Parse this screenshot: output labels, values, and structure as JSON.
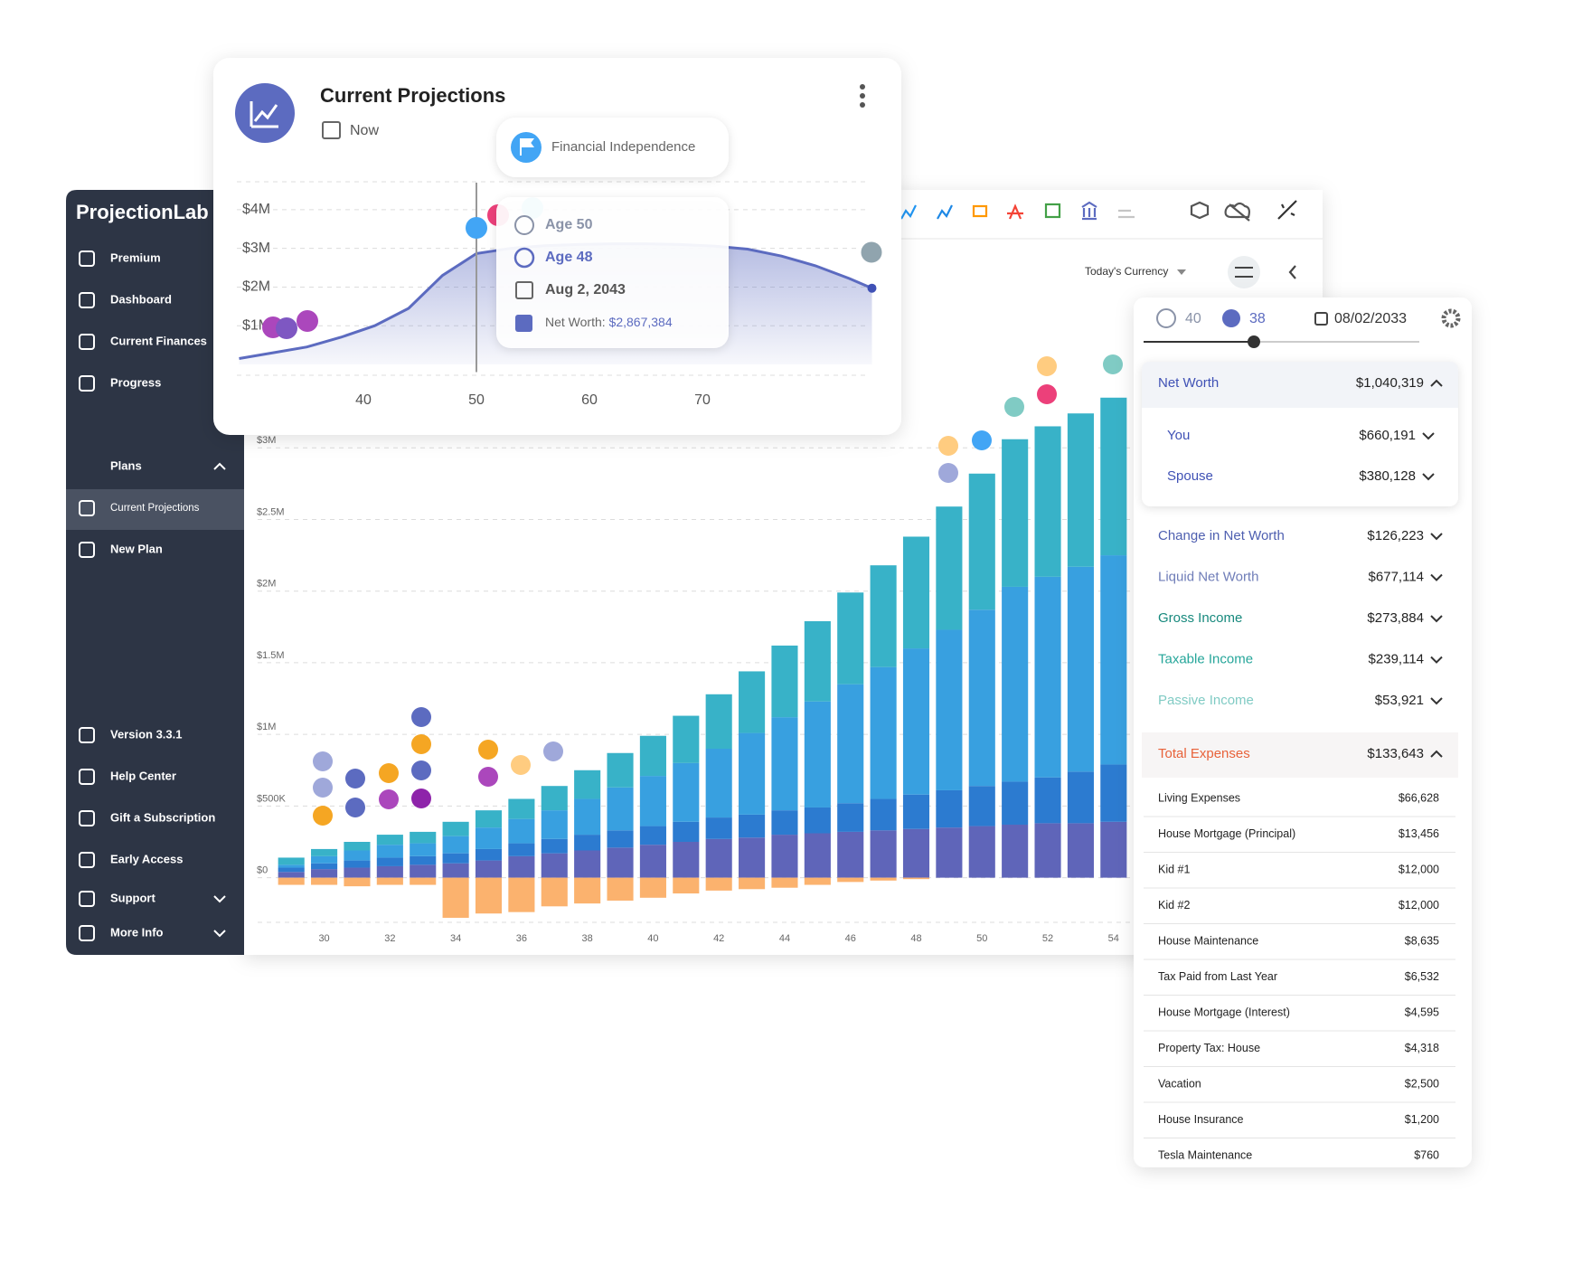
{
  "sidebar": {
    "brand": "ProjectionLab",
    "nav": [
      "Premium",
      "Dashboard",
      "Current Finances",
      "Progress"
    ],
    "plans_header": "Plans",
    "plans": [
      "Current Projections",
      "New Plan"
    ],
    "footer": [
      "Version 3.3.1",
      "Help Center",
      "Gift a Subscription",
      "Early Access",
      "Support",
      "More Info"
    ]
  },
  "toolbar": {
    "currency": "Today's Currency"
  },
  "projection_card": {
    "title": "Current Projections",
    "date": "Now",
    "milestone": "Financial Independence",
    "tooltip": {
      "age_you": "Age 50",
      "age_spouse": "Age 48",
      "date": "Aug 2, 2043",
      "metric_label": "Net Worth:",
      "metric_value": "$2,867,384"
    },
    "chart": {
      "type": "line",
      "x": [
        29,
        32,
        35,
        38,
        41,
        44,
        47,
        50,
        53,
        56,
        59,
        62,
        65,
        68,
        71,
        74,
        77,
        80,
        83,
        85
      ],
      "values": [
        150000,
        300000,
        450000,
        700000,
        1000000,
        1450000,
        2300000,
        2867384,
        3000000,
        3070000,
        3100000,
        3120000,
        3120000,
        3100000,
        3060000,
        2980000,
        2800000,
        2550000,
        2220000,
        1970000
      ],
      "color": "#5c6bc0",
      "xlim": [
        28,
        86
      ],
      "xticks": [
        40,
        50,
        60,
        70
      ],
      "ylim": [
        -200000,
        4700000
      ],
      "yticks": [
        {
          "value": 1000000,
          "label": "$1M"
        },
        {
          "value": 2000000,
          "label": "$2M"
        },
        {
          "value": 3000000,
          "label": "$3M"
        },
        {
          "value": 4000000,
          "label": "$4M"
        }
      ],
      "grid": true,
      "cursor_x": 50
    }
  },
  "main_chart": {
    "type": "bar",
    "stacked": true,
    "x": [
      29,
      30,
      31,
      32,
      33,
      34,
      35,
      36,
      37,
      38,
      39,
      40,
      41,
      42,
      43,
      44,
      45,
      46,
      47,
      48,
      49,
      50,
      51,
      52,
      53,
      54
    ],
    "xlim": [
      28.5,
      54.5
    ],
    "xticks": [
      30,
      32,
      34,
      36,
      38,
      40,
      42,
      44,
      46,
      48,
      50,
      52,
      54
    ],
    "ylim": [
      -400000,
      3500000
    ],
    "yticks": [
      {
        "value": 0,
        "label": "$0"
      },
      {
        "value": 500000,
        "label": "$500K"
      },
      {
        "value": 1000000,
        "label": "$1M"
      },
      {
        "value": 1500000,
        "label": "$1.5M"
      },
      {
        "value": 2000000,
        "label": "$2M"
      },
      {
        "value": 2500000,
        "label": "$2.5M"
      },
      {
        "value": 3000000,
        "label": "$3M"
      }
    ],
    "grid": true,
    "series": [
      {
        "color": "#5f65b9",
        "values": [
          40000,
          60000,
          70000,
          80000,
          90000,
          100000,
          120000,
          150000,
          170000,
          190000,
          210000,
          230000,
          250000,
          270000,
          280000,
          300000,
          310000,
          320000,
          330000,
          340000,
          350000,
          360000,
          370000,
          380000,
          380000,
          390000
        ]
      },
      {
        "color": "#2c7bd0",
        "values": [
          30000,
          40000,
          50000,
          60000,
          60000,
          70000,
          80000,
          90000,
          100000,
          110000,
          120000,
          130000,
          140000,
          150000,
          160000,
          170000,
          180000,
          200000,
          220000,
          240000,
          260000,
          280000,
          300000,
          320000,
          360000,
          400000
        ]
      },
      {
        "color": "#38a0e0",
        "values": [
          20000,
          50000,
          70000,
          90000,
          90000,
          120000,
          150000,
          170000,
          200000,
          250000,
          300000,
          350000,
          410000,
          480000,
          570000,
          650000,
          740000,
          830000,
          920000,
          1020000,
          1120000,
          1230000,
          1360000,
          1400000,
          1430000,
          1460000
        ]
      },
      {
        "color": "#38b2c8",
        "values": [
          50000,
          50000,
          60000,
          70000,
          80000,
          100000,
          120000,
          140000,
          170000,
          200000,
          240000,
          280000,
          330000,
          380000,
          430000,
          500000,
          560000,
          640000,
          710000,
          780000,
          860000,
          950000,
          1030000,
          1050000,
          1070000,
          1100000
        ]
      },
      {
        "color": "#fbb26e",
        "values": [
          -50000,
          -50000,
          -60000,
          -50000,
          -50000,
          -280000,
          -250000,
          -240000,
          -200000,
          -180000,
          -160000,
          -140000,
          -110000,
          -90000,
          -80000,
          -70000,
          -50000,
          -30000,
          -20000,
          -10000,
          0,
          0,
          0,
          0,
          0,
          0
        ]
      }
    ]
  },
  "details_panel": {
    "you_age": "40",
    "spouse_age": "38",
    "date": "08/02/2033",
    "net_worth": {
      "label": "Net Worth",
      "value": "$1,040,319",
      "items": [
        {
          "label": "You",
          "value": "$660,191"
        },
        {
          "label": "Spouse",
          "value": "$380,128"
        }
      ]
    },
    "metrics": [
      {
        "label": "Change in Net Worth",
        "value": "$126,223",
        "color": "#4e5fb0"
      },
      {
        "label": "Liquid Net Worth",
        "value": "$677,114",
        "color": "#6f7db8"
      },
      {
        "label": "Gross Income",
        "value": "$273,884",
        "color": "#17897d"
      },
      {
        "label": "Taxable Income",
        "value": "$239,114",
        "color": "#26a69a"
      },
      {
        "label": "Passive Income",
        "value": "$53,921",
        "color": "#80cbc4"
      }
    ],
    "expenses": {
      "label": "Total Expenses",
      "value": "$133,643",
      "color": "#e8623a",
      "items": [
        {
          "label": "Living Expenses",
          "value": "$66,628"
        },
        {
          "label": "House Mortgage (Principal)",
          "value": "$13,456"
        },
        {
          "label": "Kid #1",
          "value": "$12,000"
        },
        {
          "label": "Kid #2",
          "value": "$12,000"
        },
        {
          "label": "House Maintenance",
          "value": "$8,635"
        },
        {
          "label": "Tax Paid from Last Year",
          "value": "$6,532"
        },
        {
          "label": "House Mortgage (Interest)",
          "value": "$4,595"
        },
        {
          "label": "Property Tax: House",
          "value": "$4,318"
        },
        {
          "label": "Vacation",
          "value": "$2,500"
        },
        {
          "label": "House Insurance",
          "value": "$1,200"
        },
        {
          "label": "Tesla Maintenance",
          "value": "$760"
        }
      ]
    }
  }
}
